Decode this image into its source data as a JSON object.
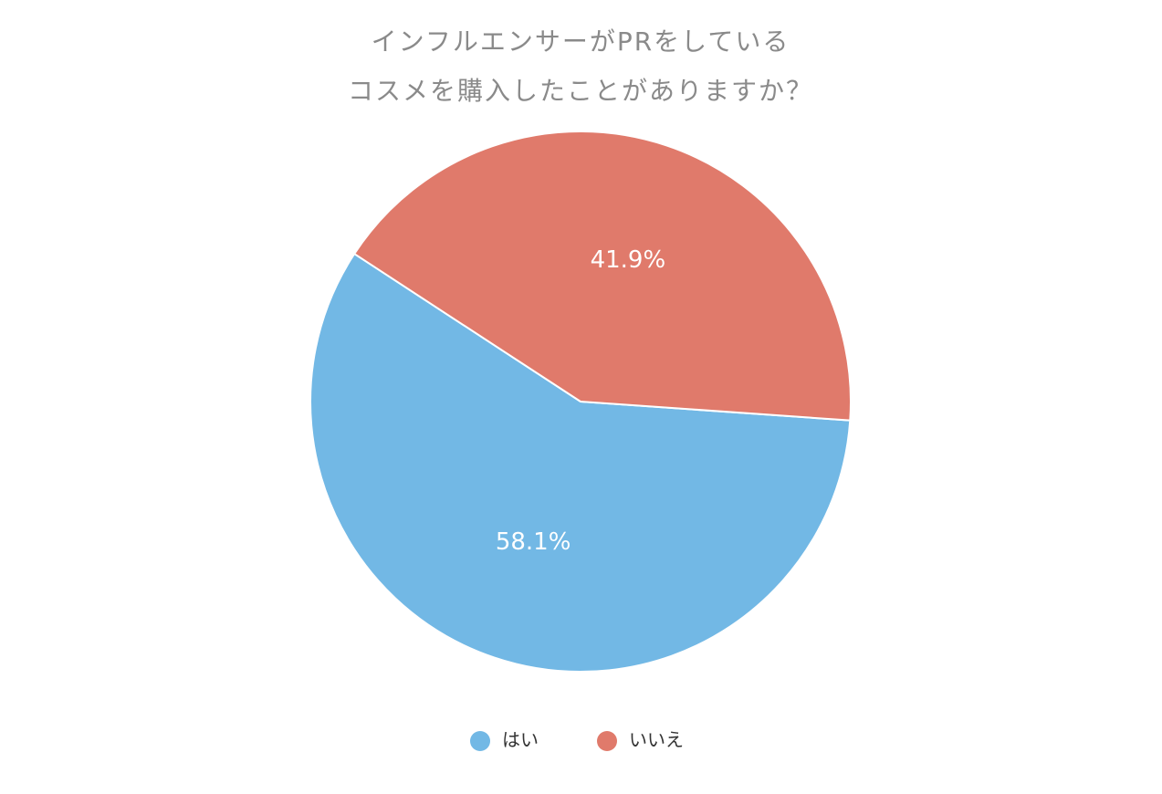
{
  "chart_data": {
    "type": "pie",
    "title": [
      "インフルエンサーがPRをしている",
      "コスメを購入したことがありますか？"
    ],
    "categories": [
      "はい",
      "いいえ"
    ],
    "values": [
      58.1,
      41.9
    ],
    "value_labels": [
      "58.1%",
      "41.9%"
    ],
    "colors": [
      "#72b8e5",
      "#e07a6b"
    ]
  }
}
